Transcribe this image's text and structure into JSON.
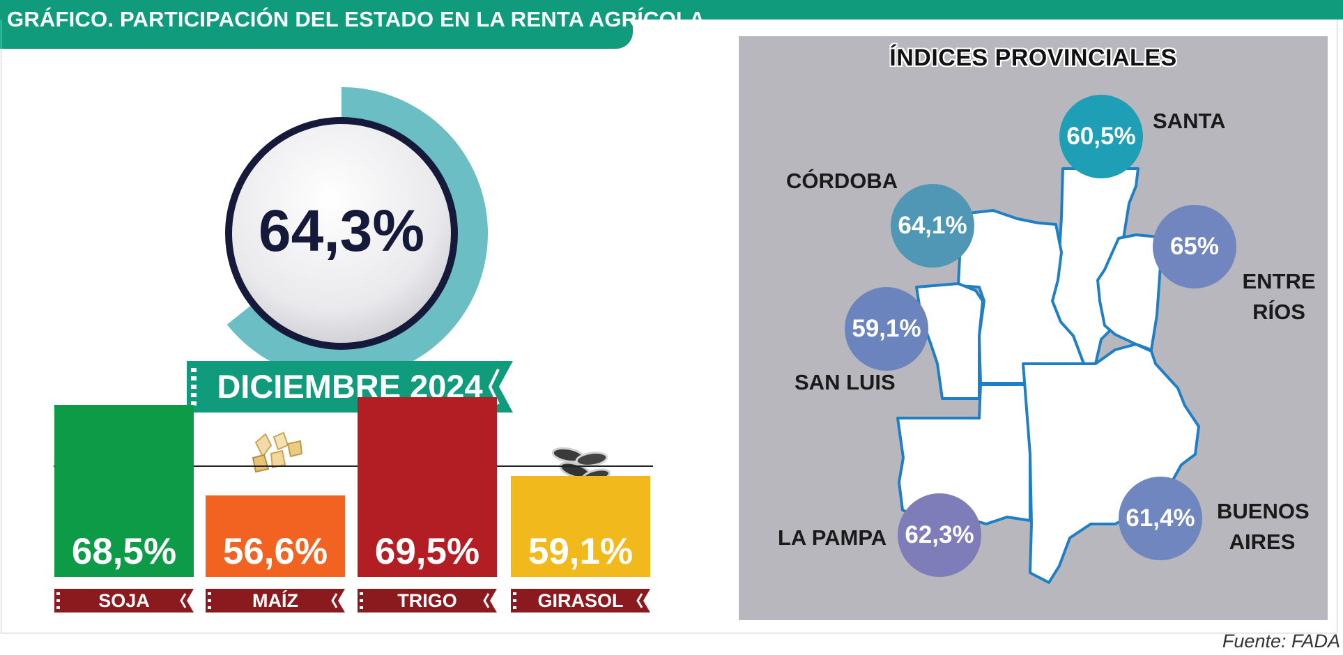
{
  "header": {
    "title": "GRÁFICO. PARTICIPACIÓN DEL ESTADO EN LA RENTA AGRÍCOLA"
  },
  "colors": {
    "brand": "#109c7c",
    "donut_ring": "#6bbec4",
    "crop_label_band": "#8b1a1f",
    "map_panel": "#b7b7bd",
    "map_outline": "#1f7fc4"
  },
  "main_indicator": {
    "value": "64,3%",
    "percent": 64.3,
    "month": "DICIEMBRE 2024"
  },
  "chart_data": [
    {
      "type": "bar",
      "categories": [
        "SOJA",
        "MAÍZ",
        "TRIGO",
        "GIRASOL"
      ],
      "values": [
        68.5,
        56.6,
        69.5,
        59.1
      ],
      "labels": [
        "68,5%",
        "56,6%",
        "69,5%",
        "59,1%"
      ],
      "colors": [
        "#0d9b48",
        "#f26322",
        "#b31d24",
        "#f1b91c"
      ],
      "icons": [
        "soybean-icon",
        "corn-kernel-icon",
        "wheat-ear-icon",
        "sunflower-seed-icon"
      ]
    },
    {
      "type": "map",
      "title": "ÍNDICES PROVINCIALES",
      "regions": [
        {
          "name": "SANTA",
          "value": 60.5,
          "label": "60,5%",
          "color": "#1e9fb6"
        },
        {
          "name": "CÓRDOBA",
          "value": 64.1,
          "label": "64,1%",
          "color": "#4f97b5"
        },
        {
          "name": "ENTRE RÍOS",
          "value": 65,
          "label": "65%",
          "color": "#7186be"
        },
        {
          "name": "SAN LUIS",
          "value": 59.1,
          "label": "59,1%",
          "color": "#6b84bd"
        },
        {
          "name": "LA PAMPA",
          "value": 62.3,
          "label": "62,3%",
          "color": "#7f7db9"
        },
        {
          "name": "BUENOS AIRES",
          "value": 61.4,
          "label": "61,4%",
          "color": "#6f86be"
        }
      ]
    }
  ],
  "map_labels": {
    "santa": "SANTA",
    "cordoba": "CÓRDOBA",
    "entre_rios_1": "ENTRE",
    "entre_rios_2": "RÍOS",
    "san_luis": "SAN LUIS",
    "la_pampa": "LA PAMPA",
    "buenos_aires_1": "BUENOS",
    "buenos_aires_2": "AIRES"
  },
  "footer": {
    "source": "Fuente: FADA"
  }
}
